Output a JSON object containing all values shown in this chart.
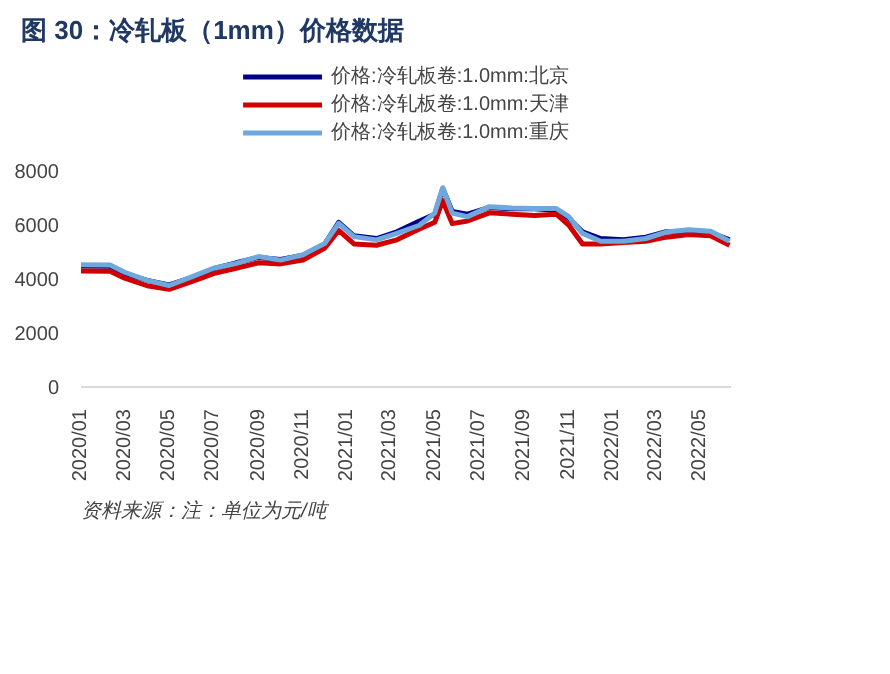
{
  "chart_data": {
    "type": "line",
    "title": "图 30：冷轧板（1mm）价格数据",
    "x": [
      "2020-01-01",
      "2020-02-10",
      "2020-03-01",
      "2020-04-01",
      "2020-05-01",
      "2020-06-01",
      "2020-07-01",
      "2020-08-01",
      "2020-09-01",
      "2020-10-01",
      "2020-11-01",
      "2020-12-01",
      "2020-12-20",
      "2021-01-10",
      "2021-02-10",
      "2021-03-10",
      "2021-04-10",
      "2021-05-01",
      "2021-05-12",
      "2021-05-25",
      "2021-06-15",
      "2021-07-15",
      "2021-08-15",
      "2021-09-15",
      "2021-10-15",
      "2021-11-01",
      "2021-11-20",
      "2021-12-15",
      "2022-01-15",
      "2022-02-15",
      "2022-03-15",
      "2022-04-15",
      "2022-05-15",
      "2022-06-10"
    ],
    "series": [
      {
        "name": "价格:冷轧板卷:1.0mm:北京",
        "color": "#00008b",
        "values": [
          4480,
          4470,
          4200,
          3950,
          3780,
          4050,
          4380,
          4600,
          4800,
          4720,
          4880,
          5300,
          6100,
          5600,
          5500,
          5750,
          6150,
          6400,
          7350,
          6500,
          6400,
          6650,
          6600,
          6600,
          6550,
          6250,
          5750,
          5500,
          5450,
          5550,
          5750,
          5750,
          5720,
          5450
        ]
      },
      {
        "name": "价格:冷轧板卷:1.0mm:天津",
        "color": "#d00000",
        "values": [
          4300,
          4290,
          4030,
          3750,
          3620,
          3900,
          4200,
          4400,
          4600,
          4560,
          4700,
          5150,
          5800,
          5300,
          5250,
          5450,
          5850,
          6100,
          6900,
          6050,
          6150,
          6450,
          6400,
          6350,
          6400,
          6000,
          5300,
          5300,
          5350,
          5400,
          5550,
          5650,
          5600,
          5250
        ]
      },
      {
        "name": "价格:冷轧板卷:1.0mm:重庆",
        "color": "#6fa8dc",
        "values": [
          4530,
          4520,
          4250,
          3950,
          3760,
          4080,
          4400,
          4580,
          4830,
          4700,
          4900,
          5320,
          6060,
          5570,
          5450,
          5690,
          5990,
          6440,
          7380,
          6440,
          6310,
          6680,
          6630,
          6610,
          6610,
          6310,
          5690,
          5400,
          5400,
          5500,
          5740,
          5820,
          5770,
          5400
        ]
      }
    ],
    "xlim": [
      "2020-01-01",
      "2022-06-12"
    ],
    "xticks": [
      {
        "value": "2020-01",
        "label": "2020/01"
      },
      {
        "value": "2020-03",
        "label": "2020/03"
      },
      {
        "value": "2020-05",
        "label": "2020/05"
      },
      {
        "value": "2020-07",
        "label": "2020/07"
      },
      {
        "value": "2020-09",
        "label": "2020/09"
      },
      {
        "value": "2020-11",
        "label": "2020/11"
      },
      {
        "value": "2021-01",
        "label": "2021/01"
      },
      {
        "value": "2021-03",
        "label": "2021/03"
      },
      {
        "value": "2021-05",
        "label": "2021/05"
      },
      {
        "value": "2021-07",
        "label": "2021/07"
      },
      {
        "value": "2021-09",
        "label": "2021/09"
      },
      {
        "value": "2021-11",
        "label": "2021/11"
      },
      {
        "value": "2022-01",
        "label": "2022/01"
      },
      {
        "value": "2022-03",
        "label": "2022/03"
      },
      {
        "value": "2022-05",
        "label": "2022/05"
      }
    ],
    "ylim": [
      0,
      8000
    ],
    "yticks": [
      0,
      2000,
      4000,
      6000,
      8000
    ],
    "grid": false,
    "legend": "top",
    "annotations": [
      "资料来源：注：单位为元/吨"
    ]
  }
}
